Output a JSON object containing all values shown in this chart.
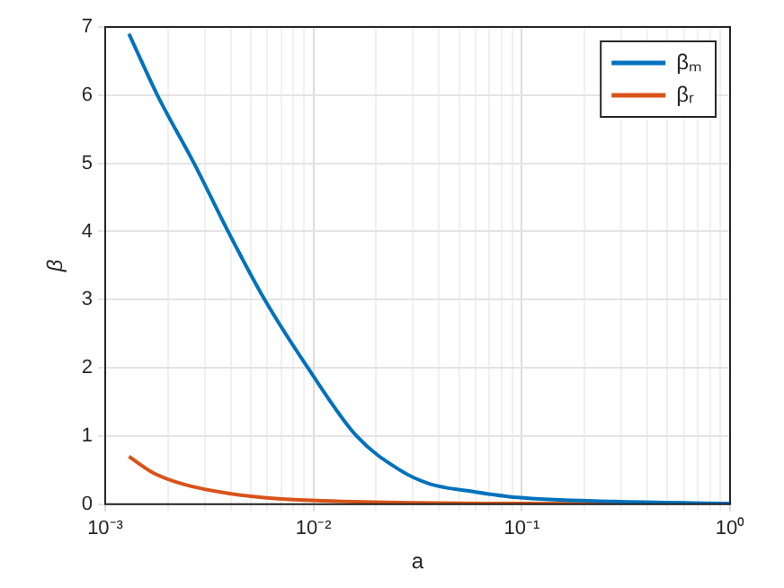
{
  "chart_data": {
    "type": "line",
    "xlabel": "a",
    "ylabel": "β",
    "log": "x",
    "grid": true,
    "legend": "top right",
    "marker": "none",
    "line_style": "solid",
    "xlim": [
      0.001,
      1
    ],
    "ylim": [
      0,
      7
    ],
    "xticks": [
      {
        "value": 0.001,
        "label": "10⁻³"
      },
      {
        "value": 0.002,
        "label": null
      },
      {
        "value": 0.003,
        "label": null
      },
      {
        "value": 0.004,
        "label": null
      },
      {
        "value": 0.005,
        "label": null
      },
      {
        "value": 0.006,
        "label": null
      },
      {
        "value": 0.007,
        "label": null
      },
      {
        "value": 0.008,
        "label": null
      },
      {
        "value": 0.009,
        "label": null
      },
      {
        "value": 0.01,
        "label": "10⁻²"
      },
      {
        "value": 0.02,
        "label": null
      },
      {
        "value": 0.03,
        "label": null
      },
      {
        "value": 0.04,
        "label": null
      },
      {
        "value": 0.05,
        "label": null
      },
      {
        "value": 0.06,
        "label": null
      },
      {
        "value": 0.07,
        "label": null
      },
      {
        "value": 0.08,
        "label": null
      },
      {
        "value": 0.09,
        "label": null
      },
      {
        "value": 0.1,
        "label": "10⁻¹"
      },
      {
        "value": 0.2,
        "label": null
      },
      {
        "value": 0.3,
        "label": null
      },
      {
        "value": 0.4,
        "label": null
      },
      {
        "value": 0.5,
        "label": null
      },
      {
        "value": 0.6,
        "label": null
      },
      {
        "value": 0.7,
        "label": null
      },
      {
        "value": 0.8,
        "label": null
      },
      {
        "value": 0.9,
        "label": null
      },
      {
        "value": 1,
        "label": "10⁰"
      }
    ],
    "yticks": [
      0,
      1,
      2,
      3,
      4,
      5,
      6,
      7
    ],
    "series": [
      {
        "name": "βₘ",
        "color": "#0072bd",
        "x": [
          0.0013,
          0.00178,
          0.00267,
          0.00389,
          0.00583,
          0.0094,
          0.0161,
          0.026,
          0.036,
          0.06,
          0.095,
          0.28,
          1
        ],
        "values": [
          6.9,
          6,
          5,
          4,
          3,
          2,
          1,
          0.5,
          0.3,
          0.18,
          0.1,
          0.04,
          0.01
        ]
      },
      {
        "name": "βᵣ",
        "color": "#d95319",
        "x": [
          0.0013,
          0.0017,
          0.0024,
          0.0039,
          0.0068,
          0.011,
          0.03,
          0.1,
          1
        ],
        "values": [
          0.7,
          0.46,
          0.29,
          0.16,
          0.08,
          0.05,
          0.02,
          0.01,
          0
        ]
      }
    ]
  }
}
